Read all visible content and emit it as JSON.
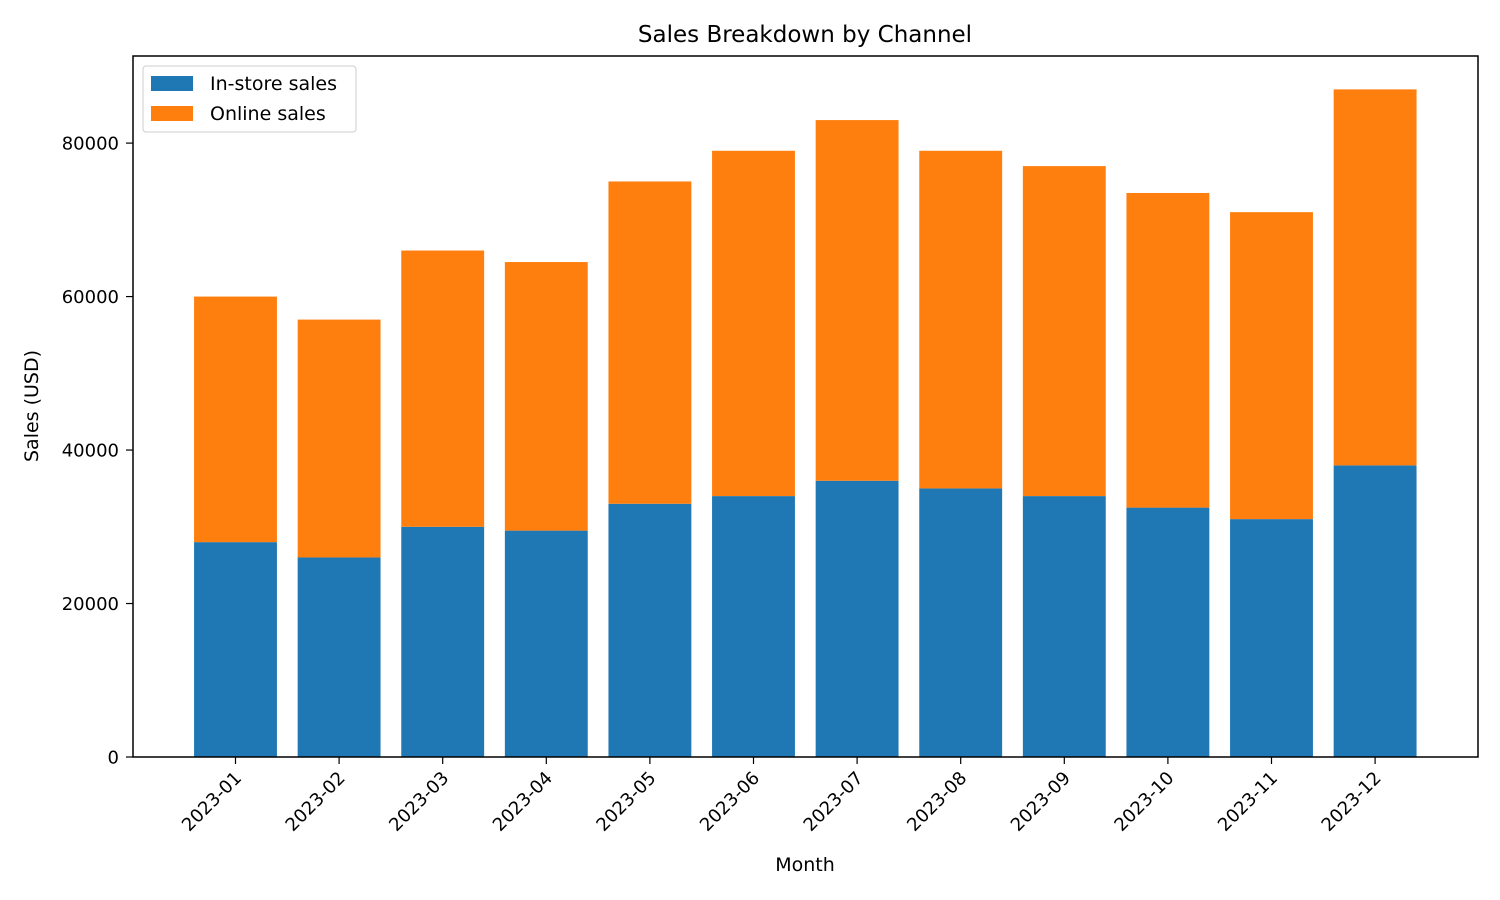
{
  "chart_data": {
    "type": "bar",
    "stacked": true,
    "title": "Sales Breakdown by Channel",
    "xlabel": "Month",
    "ylabel": "Sales (USD)",
    "categories": [
      "2023-01",
      "2023-02",
      "2023-03",
      "2023-04",
      "2023-05",
      "2023-06",
      "2023-07",
      "2023-08",
      "2023-09",
      "2023-10",
      "2023-11",
      "2023-12"
    ],
    "series": [
      {
        "name": "In-store sales",
        "color": "#1f77b4",
        "values": [
          28000,
          26000,
          30000,
          29500,
          33000,
          34000,
          36000,
          35000,
          34000,
          32500,
          31000,
          38000
        ]
      },
      {
        "name": "Online sales",
        "color": "#ff7f0e",
        "values": [
          32000,
          31000,
          36000,
          35000,
          42000,
          45000,
          47000,
          44000,
          43000,
          41000,
          40000,
          49000
        ]
      }
    ],
    "ylim": [
      0,
      91350
    ],
    "yticks": [
      0,
      20000,
      40000,
      60000,
      80000
    ],
    "grid": false,
    "legend_position": "upper left"
  }
}
